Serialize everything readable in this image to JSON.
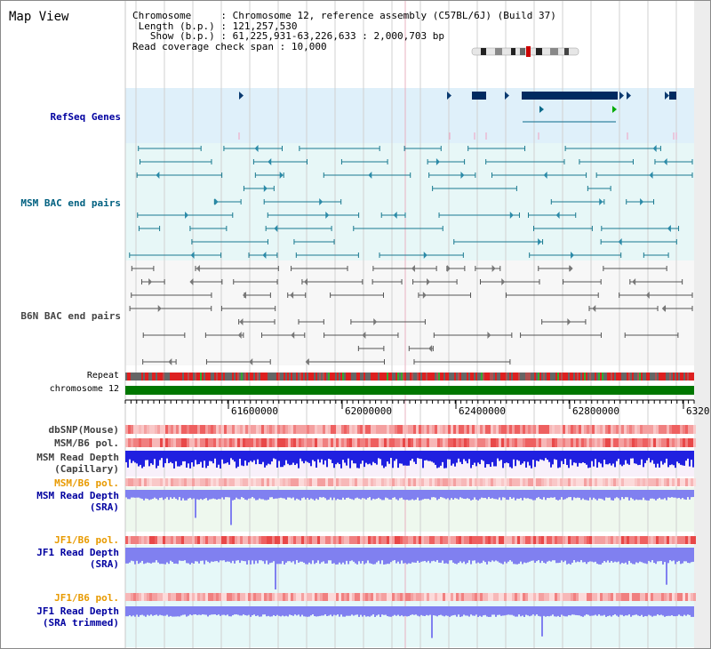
{
  "title": "Map View",
  "info": {
    "chromosome_label": "Chromosome",
    "chromosome_value": "Chromosome 12, reference assembly (C57BL/6J) (Build 37)",
    "length_label": "Length (b.p.)",
    "length_value": "121,257,530",
    "show_label": "Show (b.p.)",
    "show_value": "61,225,931-63,226,633 : 2,000,703 bp",
    "coverage_label": "Read coverage check span",
    "coverage_value": "10,000"
  },
  "tracks": {
    "refseq": "RefSeq Genes",
    "msm_bac": "MSM BAC end pairs",
    "b6n_bac": "B6N BAC end pairs",
    "repeat": "Repeat",
    "chromosome": "chromosome 12",
    "dbsnp": "dbSNP(Mouse)",
    "msm_b6_pol_1": "MSM/B6 pol.",
    "msm_depth_cap_1": "MSM Read Depth",
    "msm_depth_cap_2": "(Capillary)",
    "msm_b6_pol_2": "MSM/B6 pol.",
    "msm_depth_sra_1": "MSM Read Depth",
    "msm_depth_sra_2": "(SRA)",
    "jf1_b6_pol_1": "JF1/B6 pol.",
    "jf1_depth_sra_1": "JF1 Read Depth",
    "jf1_depth_sra_2": "(SRA)",
    "jf1_b6_pol_2": "JF1/B6 pol.",
    "jf1_depth_trim_1": "JF1 Read Depth",
    "jf1_depth_trim_2": "(SRA trimmed)"
  },
  "axis_ticks": [
    "61600000",
    "62000000",
    "62400000",
    "62800000",
    "6320"
  ],
  "colors": {
    "refseq_bg": "#dff0fa",
    "msm_bac_bg": "#e7f7f7",
    "b6n_bac_bg": "#f7f7f7",
    "refseq_label": "#0000a0",
    "msm_bac_label": "#006080",
    "b6n_bac_label": "#444444",
    "pol_label": "#e89a00",
    "depth_label": "#0000a0",
    "capillary_depth": "#2020e0",
    "sra_depth": "#8080f0",
    "chromosome_bar": "#007700"
  }
}
